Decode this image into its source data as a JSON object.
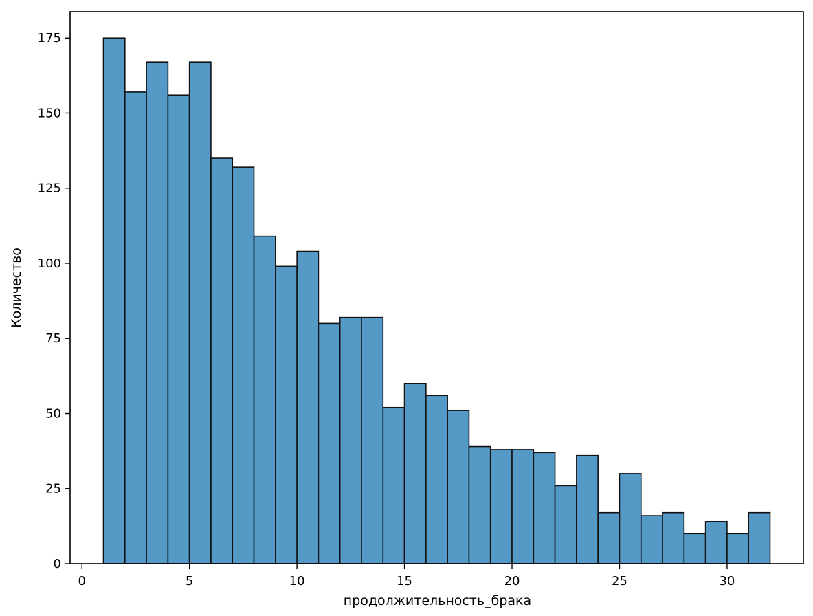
{
  "chart_data": {
    "type": "bar",
    "title": "",
    "xlabel": "продолжительность_брака",
    "ylabel": "Количество",
    "bin_width": 1,
    "bins": [
      {
        "x0": 1,
        "x1": 2,
        "count": 175
      },
      {
        "x0": 2,
        "x1": 3,
        "count": 157
      },
      {
        "x0": 3,
        "x1": 4,
        "count": 167
      },
      {
        "x0": 4,
        "x1": 5,
        "count": 156
      },
      {
        "x0": 5,
        "x1": 6,
        "count": 167
      },
      {
        "x0": 6,
        "x1": 7,
        "count": 135
      },
      {
        "x0": 7,
        "x1": 8,
        "count": 132
      },
      {
        "x0": 8,
        "x1": 9,
        "count": 109
      },
      {
        "x0": 9,
        "x1": 10,
        "count": 99
      },
      {
        "x0": 10,
        "x1": 11,
        "count": 104
      },
      {
        "x0": 11,
        "x1": 12,
        "count": 80
      },
      {
        "x0": 12,
        "x1": 13,
        "count": 82
      },
      {
        "x0": 13,
        "x1": 14,
        "count": 82
      },
      {
        "x0": 14,
        "x1": 15,
        "count": 52
      },
      {
        "x0": 15,
        "x1": 16,
        "count": 60
      },
      {
        "x0": 16,
        "x1": 17,
        "count": 56
      },
      {
        "x0": 17,
        "x1": 18,
        "count": 51
      },
      {
        "x0": 18,
        "x1": 19,
        "count": 39
      },
      {
        "x0": 19,
        "x1": 20,
        "count": 38
      },
      {
        "x0": 20,
        "x1": 21,
        "count": 38
      },
      {
        "x0": 21,
        "x1": 22,
        "count": 37
      },
      {
        "x0": 22,
        "x1": 23,
        "count": 26
      },
      {
        "x0": 23,
        "x1": 24,
        "count": 36
      },
      {
        "x0": 24,
        "x1": 25,
        "count": 17
      },
      {
        "x0": 25,
        "x1": 26,
        "count": 30
      },
      {
        "x0": 26,
        "x1": 27,
        "count": 16
      },
      {
        "x0": 27,
        "x1": 28,
        "count": 17
      },
      {
        "x0": 28,
        "x1": 29,
        "count": 10
      },
      {
        "x0": 29,
        "x1": 30,
        "count": 14
      },
      {
        "x0": 30,
        "x1": 31,
        "count": 10
      },
      {
        "x0": 31,
        "x1": 32,
        "count": 17
      }
    ],
    "xlim": [
      -0.55,
      33.55
    ],
    "ylim": [
      0,
      183.75
    ],
    "x_ticks": [
      0,
      5,
      10,
      15,
      20,
      25,
      30
    ],
    "y_ticks": [
      0,
      25,
      50,
      75,
      100,
      125,
      150,
      175
    ],
    "grid": false,
    "legend": "none",
    "colors": {
      "bar_fill": "#5599c7",
      "bar_edge": "#111111",
      "axis": "#000000",
      "text": "#000000",
      "background": "#ffffff"
    }
  }
}
